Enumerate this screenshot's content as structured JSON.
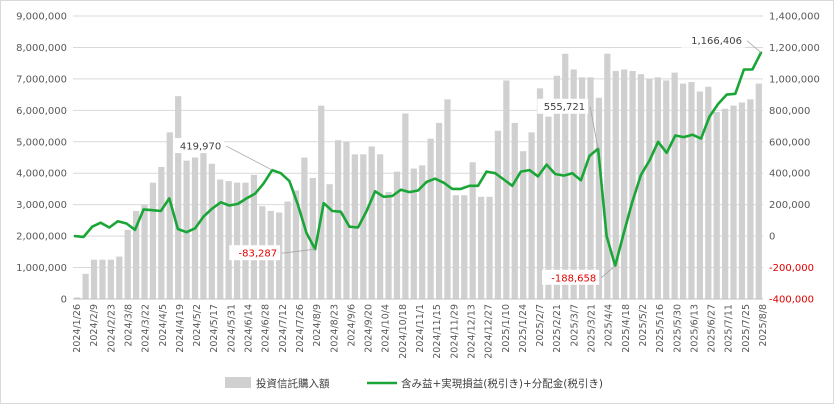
{
  "chart_data": {
    "type": "bar",
    "title": "",
    "xlabel": "",
    "ylabel": "",
    "ylim": [
      0,
      9000000
    ],
    "y2lim": [
      -400000,
      1400000
    ],
    "grid": true,
    "legend_position": "bottom",
    "left_ticks": [
      "0",
      "1,000,000",
      "2,000,000",
      "3,000,000",
      "4,000,000",
      "5,000,000",
      "6,000,000",
      "7,000,000",
      "8,000,000",
      "9,000,000"
    ],
    "right_ticks": [
      "-400,000",
      "-200,000",
      "0",
      "200,000",
      "400,000",
      "600,000",
      "800,000",
      "1,000,000",
      "1,200,000",
      "1,400,000"
    ],
    "x_tick_labels": [
      "2024/1/26",
      "2024/2/9",
      "2024/2/23",
      "2024/3/8",
      "2024/3/22",
      "2024/4/5",
      "2024/4/19",
      "2024/5/2",
      "2024/5/17",
      "2024/5/31",
      "2024/6/14",
      "2024/6/28",
      "2024/7/12",
      "2024/7/26",
      "2024/8/9",
      "2024/8/23",
      "2024/9/6",
      "2024/9/20",
      "2024/10/4",
      "2024/10/18",
      "2024/11/1",
      "2024/11/15",
      "2024/11/29",
      "2024/12/13",
      "2024/12/27",
      "2025/1/10",
      "2025/1/24",
      "2025/2/7",
      "2025/2/21",
      "2025/3/7",
      "2025/3/21",
      "2025/4/4",
      "2025/4/18",
      "2025/5/2",
      "2025/5/16",
      "2025/5/30",
      "2025/6/13",
      "2025/6/27",
      "2025/7/11",
      "2025/7/25",
      "2025/8/8"
    ],
    "series": [
      {
        "name": "投資信託購入額",
        "kind": "bar",
        "axis": "left",
        "color": "#d0d0d0",
        "values": [
          50000,
          800000,
          1250000,
          1250000,
          1250000,
          1350000,
          2200000,
          2800000,
          3000000,
          3700000,
          4200000,
          5300000,
          6450000,
          4400000,
          4500000,
          4650000,
          4300000,
          3800000,
          3750000,
          3700000,
          3700000,
          3950000,
          2950000,
          2800000,
          2750000,
          3100000,
          3450000,
          4500000,
          3850000,
          6150000,
          3650000,
          5050000,
          5000000,
          4600000,
          4600000,
          4850000,
          4600000,
          3400000,
          4050000,
          5900000,
          4150000,
          4250000,
          5100000,
          5600000,
          6350000,
          3300000,
          3300000,
          4350000,
          3250000,
          3250000,
          5350000,
          6950000,
          5600000,
          4700000,
          5300000,
          6700000,
          5800000,
          7100000,
          7800000,
          7300000,
          7050000,
          7050000,
          6400000,
          7800000,
          7250000,
          7300000,
          7250000,
          7150000,
          7000000,
          7050000,
          6950000,
          7200000,
          6850000,
          6900000,
          6600000,
          6750000,
          5950000,
          6050000,
          6150000,
          6250000,
          6350000,
          6850000
        ]
      },
      {
        "name": "含み益+実現損益(税引き)+分配金(税引き)",
        "kind": "line",
        "axis": "right",
        "color": "#1aa637",
        "values": [
          0,
          -5000,
          60000,
          85000,
          55000,
          95000,
          80000,
          40000,
          170000,
          165000,
          160000,
          240000,
          45000,
          25000,
          50000,
          125000,
          175000,
          215000,
          195000,
          205000,
          240000,
          270000,
          335000,
          419970,
          400000,
          350000,
          200000,
          20000,
          -83287,
          210000,
          160000,
          155000,
          60000,
          55000,
          160000,
          285000,
          250000,
          255000,
          295000,
          280000,
          290000,
          345000,
          365000,
          340000,
          300000,
          300000,
          320000,
          320000,
          410000,
          400000,
          360000,
          320000,
          410000,
          420000,
          380000,
          455000,
          395000,
          385000,
          400000,
          355000,
          510000,
          555721,
          0,
          -188658,
          20000,
          220000,
          390000,
          480000,
          600000,
          530000,
          640000,
          630000,
          645000,
          620000,
          760000,
          840000,
          900000,
          905000,
          1060000,
          1060000,
          1166406
        ]
      }
    ],
    "annotations": [
      {
        "label": "419,970",
        "color": "#404040",
        "series": 1,
        "index": 23
      },
      {
        "label": "-83,287",
        "color": "#e00000",
        "series": 1,
        "index": 28
      },
      {
        "label": "555,721",
        "color": "#404040",
        "series": 1,
        "index": 61
      },
      {
        "label": "-188,658",
        "color": "#e00000",
        "series": 1,
        "index": 63
      },
      {
        "label": "1,166,406",
        "color": "#404040",
        "series": 1,
        "index": 80
      }
    ]
  },
  "legend": {
    "bar_label": "投資信託購入額",
    "line_label": "含み益+実現損益(税引き)+分配金(税引き)"
  }
}
